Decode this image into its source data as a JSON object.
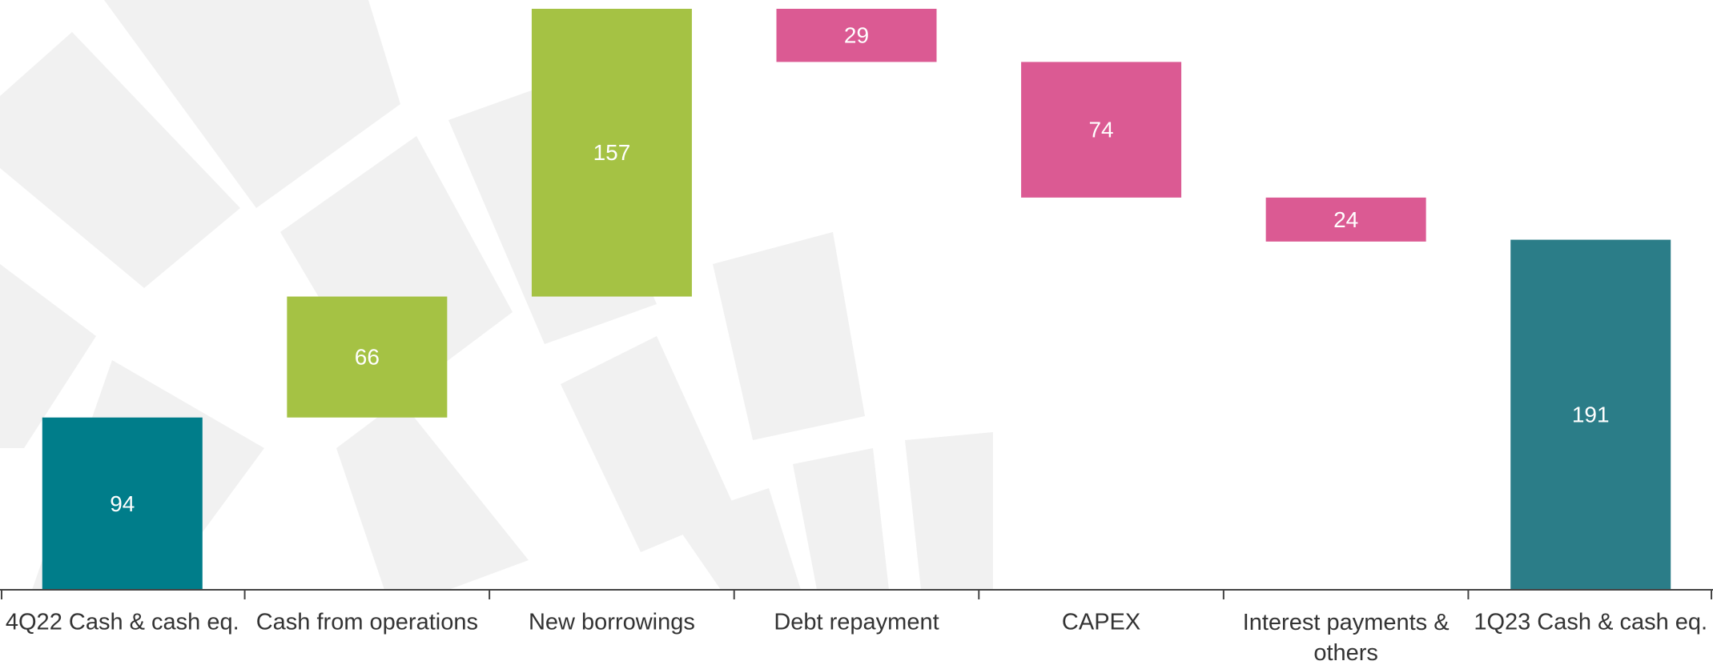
{
  "chart_data": {
    "type": "waterfall",
    "categories": [
      "4Q22 Cash & cash eq.",
      "Cash from operations",
      "New borrowings",
      "Debt repayment",
      "CAPEX",
      "Interest payments & others",
      "1Q23 Cash & cash eq."
    ],
    "values": [
      94,
      66,
      157,
      -29,
      -74,
      -24,
      191
    ],
    "value_labels": [
      "94",
      "66",
      "157",
      "29",
      "74",
      "24",
      "191"
    ],
    "colors": [
      "#007d8a",
      "#a5c244",
      "#a5c244",
      "#db5a93",
      "#db5a93",
      "#db5a93",
      "#2b7d88"
    ]
  }
}
